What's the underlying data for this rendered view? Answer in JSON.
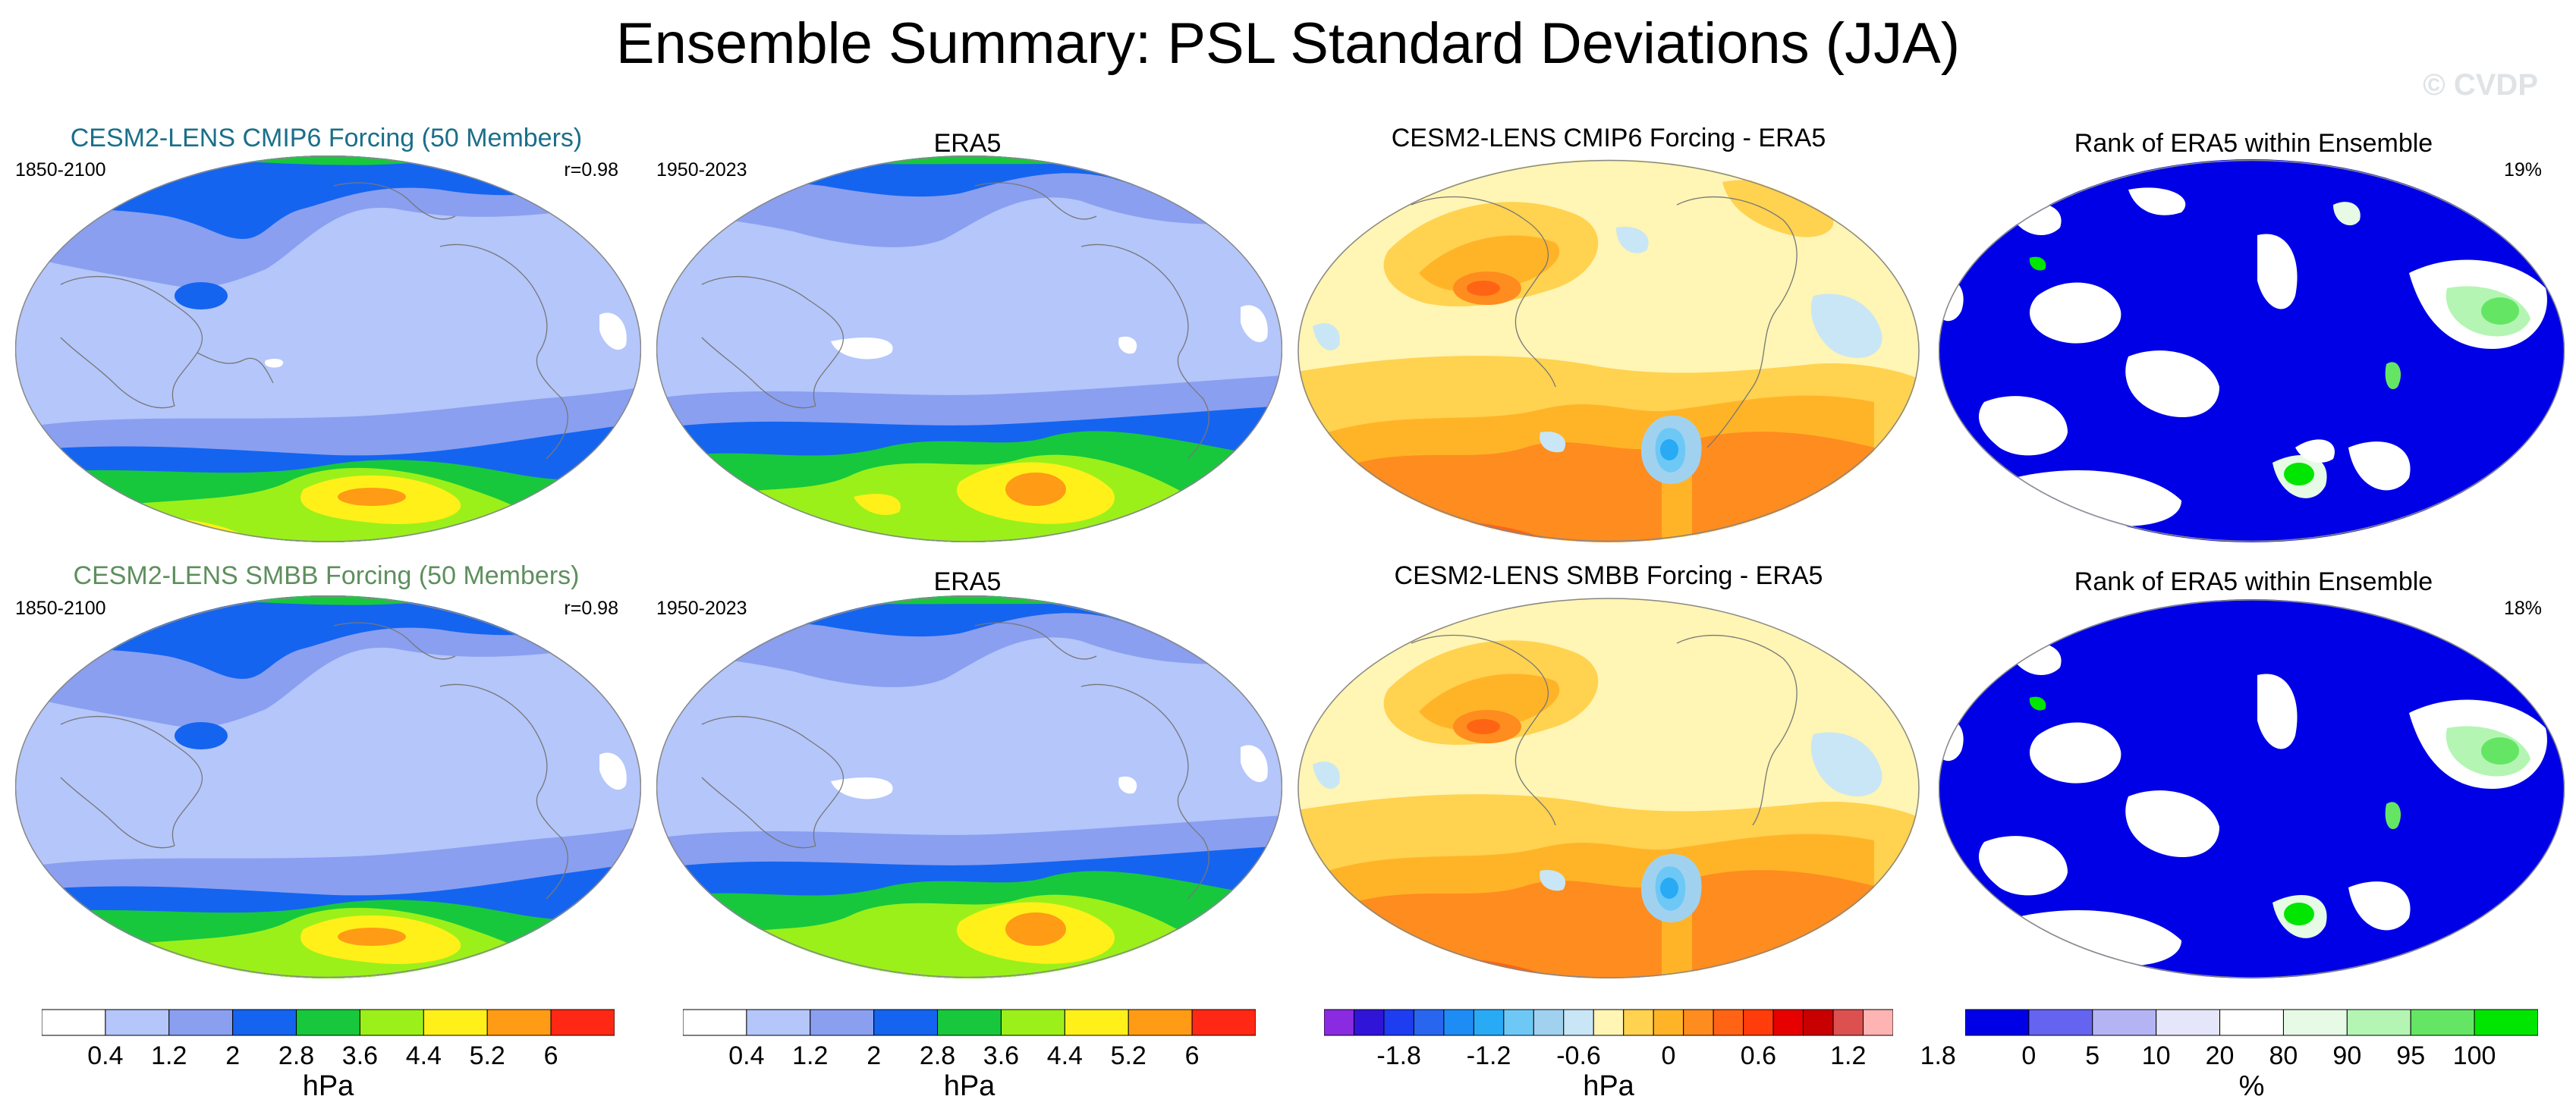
{
  "title": "Ensemble Summary: PSL Standard Deviations (JJA)",
  "watermark": "© CVDP",
  "colors": {
    "cesm_cmip6": "#1a6f8a",
    "cesm_smbb": "#5e8f5e"
  },
  "rows": [
    {
      "model_title": "CESM2-LENS CMIP6 Forcing (50 Members)",
      "model_years": "1850-2100",
      "model_r": "r=0.98",
      "obs_title": "ERA5",
      "obs_years": "1950-2023",
      "diff_title": "CESM2-LENS CMIP6 Forcing - ERA5",
      "rank_title": "Rank of ERA5 within Ensemble",
      "rank_pct": "19%"
    },
    {
      "model_title": "CESM2-LENS SMBB Forcing (50 Members)",
      "model_years": "1850-2100",
      "model_r": "r=0.98",
      "obs_title": "ERA5",
      "obs_years": "1950-2023",
      "diff_title": "CESM2-LENS SMBB Forcing - ERA5",
      "rank_title": "Rank of ERA5 within Ensemble",
      "rank_pct": "18%"
    }
  ],
  "chart_data": [
    {
      "type": "heatmap",
      "name": "std-colorbar",
      "unit": "hPa",
      "levels": [
        0.4,
        0.8,
        1.2,
        1.6,
        2,
        2.4,
        2.8,
        3.2,
        3.6,
        4.0,
        4.4,
        4.8,
        5.2,
        5.6,
        6,
        6.4,
        6.8,
        7.2,
        7.6,
        8
      ],
      "tick_labels": [
        "0.4",
        "1.2",
        "2",
        "2.8",
        "3.6",
        "4.4",
        "5.2",
        "6"
      ],
      "colors": [
        "#ffffff",
        "#b4c6fa",
        "#8a9ff0",
        "#1464f0",
        "#17c83c",
        "#9bf01a",
        "#fff01a",
        "#ff9b14",
        "#ff2814"
      ]
    },
    {
      "type": "heatmap",
      "name": "diff-colorbar",
      "unit": "hPa",
      "tick_labels": [
        "-1.8",
        "-1.2",
        "-0.6",
        "0",
        "0.6",
        "1.2",
        "1.8"
      ],
      "colors": [
        "#8a2be2",
        "#3014d8",
        "#1e3cf0",
        "#2866f0",
        "#1e8cf5",
        "#28aaf5",
        "#6ec8f5",
        "#a0d2f0",
        "#c8e6f5",
        "#fff5b4",
        "#ffd250",
        "#ffb428",
        "#ff8c1e",
        "#ff6414",
        "#ff3c0a",
        "#e60000",
        "#c80000",
        "#dc5050",
        "#ffb4b4"
      ]
    },
    {
      "type": "heatmap",
      "name": "rank-colorbar",
      "unit": "%",
      "tick_labels": [
        "0",
        "5",
        "10",
        "20",
        "80",
        "90",
        "95",
        "100"
      ],
      "colors": [
        "#0000e6",
        "#6464f0",
        "#b4b4f5",
        "#e6e6fa",
        "#ffffff",
        "#e6fae6",
        "#b4f5b4",
        "#64e664",
        "#00e600"
      ]
    }
  ]
}
